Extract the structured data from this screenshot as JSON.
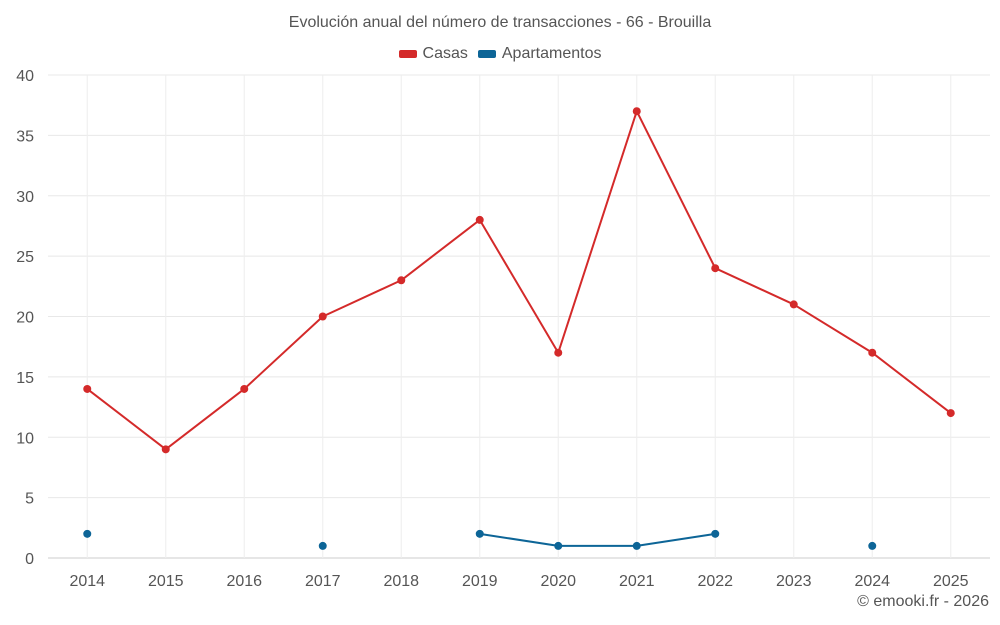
{
  "chart_data": {
    "type": "line",
    "title": "Evolución anual del número de transacciones - 66 - Brouilla",
    "categories": [
      "2014",
      "2015",
      "2016",
      "2017",
      "2018",
      "2019",
      "2020",
      "2021",
      "2022",
      "2023",
      "2024",
      "2025"
    ],
    "series": [
      {
        "name": "Casas",
        "color": "#d42a2a",
        "values": [
          14,
          9,
          14,
          20,
          23,
          28,
          17,
          37,
          24,
          21,
          17,
          12
        ]
      },
      {
        "name": "Apartamentos",
        "color": "#0d6597",
        "values": [
          2,
          null,
          null,
          1,
          null,
          2,
          1,
          1,
          2,
          null,
          1,
          null
        ]
      }
    ],
    "ylim": [
      0,
      40
    ],
    "yticks": [
      0,
      5,
      10,
      15,
      20,
      25,
      30,
      35,
      40
    ],
    "grid": true,
    "legend": "top-center",
    "xlabel": "",
    "ylabel": ""
  },
  "footer": {
    "credit": "© emooki.fr - 2026"
  }
}
